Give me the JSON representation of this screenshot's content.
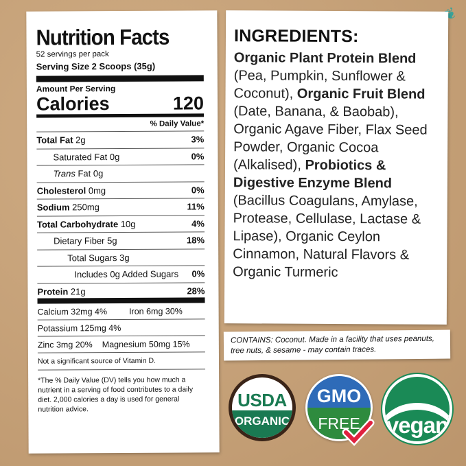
{
  "nutrition": {
    "title": "Nutrition Facts",
    "servings": "52 servings per pack",
    "serving_size": "Serving Size 2 Scoops (35g)",
    "amount_per_serving": "Amount Per Serving",
    "calories_label": "Calories",
    "calories_value": "120",
    "dv_header": "% Daily Value*",
    "rows": [
      {
        "label": "Total Fat",
        "amount": "2g",
        "dv": "3%"
      },
      {
        "label": "Saturated Fat",
        "amount": "0g",
        "dv": "0%"
      },
      {
        "label": "Trans",
        "amount": "Fat 0g",
        "dv": ""
      },
      {
        "label": "Cholesterol",
        "amount": "0mg",
        "dv": "0%"
      },
      {
        "label": "Sodium",
        "amount": "250mg",
        "dv": "11%"
      },
      {
        "label": "Total Carbohydrate",
        "amount": "10g",
        "dv": "4%"
      },
      {
        "label": "Dietary Fiber",
        "amount": "5g",
        "dv": "18%"
      },
      {
        "label": "Total Sugars",
        "amount": "3g",
        "dv": ""
      },
      {
        "label": "Includes 0g Added Sugars",
        "amount": "",
        "dv": "0%"
      },
      {
        "label": "Protein",
        "amount": "21g",
        "dv": "28%"
      }
    ],
    "minerals": [
      [
        "Calcium 32mg 4%",
        "Iron 6mg 30%"
      ],
      [
        "Potassium 125mg 4%"
      ],
      [
        "Zinc 3mg 20%",
        "Magnesium 50mg 15%"
      ]
    ],
    "vitamin_d": "Not a significant source of Vitamin D.",
    "footnote": "*The % Daily Value (DV) tells you how much a nutrient in a serving of food contributes to a daily diet. 2,000 calories a day is used for general nutrition advice."
  },
  "ingredients": {
    "title": "INGREDIENTS:",
    "segments": [
      {
        "t": "Organic Plant Protein Blend",
        "b": true
      },
      {
        "t": " (Pea, Pumpkin, Sunflower & Coconut), ",
        "b": false
      },
      {
        "t": "Organic Fruit Blend",
        "b": true
      },
      {
        "t": " (Date, Banana, & Baobab), Organic Agave Fiber, Flax Seed Powder, Organic Cocoa (Alkalised), ",
        "b": false
      },
      {
        "t": "Probiotics & Digestive Enzyme Blend",
        "b": true
      },
      {
        "t": " (Bacillus Coagulans, Amylase, Protease, Cellulase, Lactase & Lipase), Organic Ceylon Cinnamon, Natural Flavors & Organic Turmeric",
        "b": false
      }
    ]
  },
  "contains": "CONTAINS: Coconut. Made in a facility that uses peanuts, tree nuts, & sesame - may contain traces.",
  "badges": {
    "usda": [
      "USDA",
      "ORGANIC"
    ],
    "gmo": [
      "GMO",
      "FREE"
    ],
    "vegan": "vegan"
  },
  "colors": {
    "kraft": "#c8a47c",
    "usda_green": "#1a7a52",
    "gmo_blue": "#2e6bb8",
    "gmo_green": "#2e8b3e",
    "vegan_green": "#1a8a56",
    "check_red": "#e0213f"
  }
}
